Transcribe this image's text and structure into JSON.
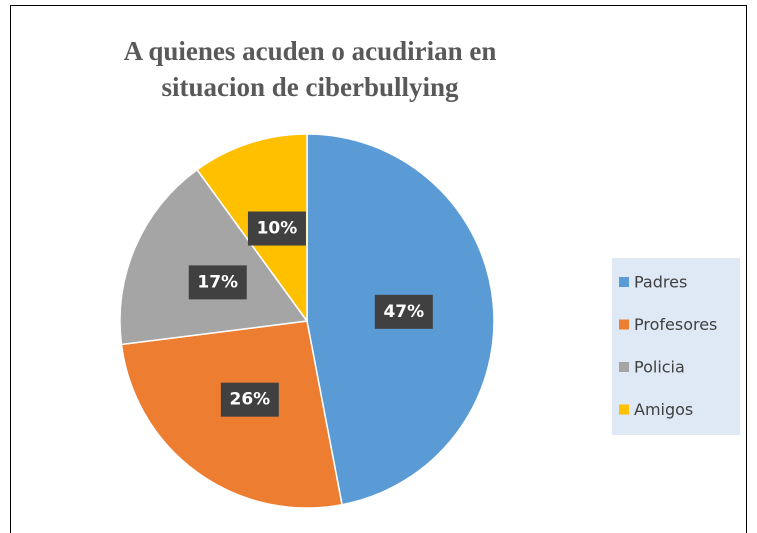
{
  "chart_data": {
    "type": "pie",
    "title": "A quienes acuden o acudirian en situacion de ciberbullying",
    "categories": [
      "Padres",
      "Profesores",
      "Policia",
      "Amigos"
    ],
    "values": [
      47,
      26,
      17,
      10
    ],
    "value_labels": [
      "47%",
      "26%",
      "17%",
      "10%"
    ],
    "colors": [
      "#5b9bd5",
      "#ed7d31",
      "#a5a5a5",
      "#ffc000"
    ],
    "legend": "right"
  }
}
